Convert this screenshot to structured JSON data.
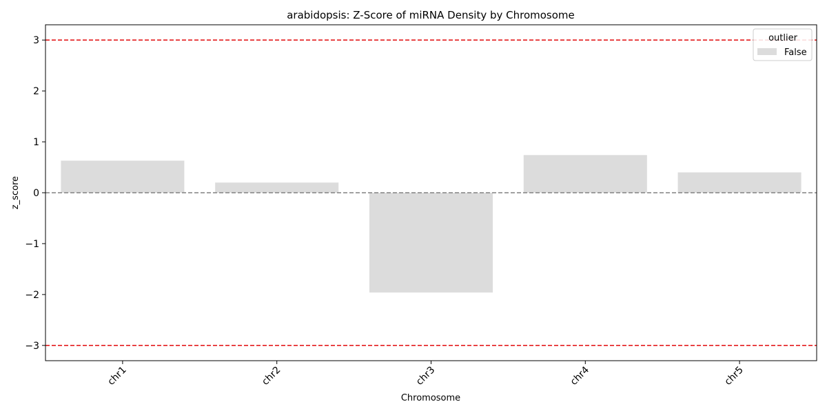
{
  "chart_data": {
    "type": "bar",
    "title": "arabidopsis: Z-Score of miRNA Density by Chromosome",
    "xlabel": "Chromosome",
    "ylabel": "z_score",
    "categories": [
      "chr1",
      "chr2",
      "chr3",
      "chr4",
      "chr5"
    ],
    "series": [
      {
        "name": "False",
        "values": [
          0.63,
          0.2,
          -1.96,
          0.74,
          0.4
        ]
      }
    ],
    "ylim": [
      -3.3,
      3.3
    ],
    "yticks": [
      -3,
      -2,
      -1,
      0,
      1,
      2,
      3
    ],
    "ytick_labels": [
      "−3",
      "−2",
      "−1",
      "0",
      "1",
      "2",
      "3"
    ],
    "reference_lines": [
      {
        "y": 3,
        "color": "#e31a1c",
        "style": "dashed"
      },
      {
        "y": -3,
        "color": "#e31a1c",
        "style": "dashed"
      },
      {
        "y": 0,
        "color": "#808080",
        "style": "dashed"
      }
    ],
    "bar_color": "#dcdcdc",
    "legend": {
      "title": "outlier",
      "placement": "top-right"
    },
    "grid": false
  }
}
